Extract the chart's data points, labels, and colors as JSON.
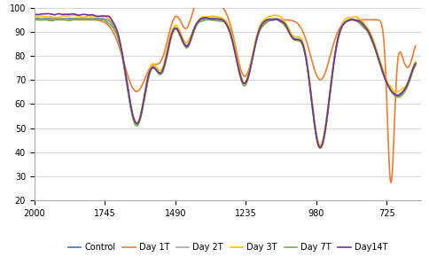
{
  "title": "",
  "xlabel": "",
  "ylabel": "",
  "xlim": [
    2000,
    600
  ],
  "ylim": [
    20,
    100
  ],
  "yticks": [
    20,
    30,
    40,
    50,
    60,
    70,
    80,
    90,
    100
  ],
  "xticks": [
    2000,
    1745,
    1490,
    1235,
    980,
    725
  ],
  "legend_labels": [
    "Control",
    "Day 1T",
    "Day 2T",
    "Day 3T",
    "Day 7T",
    "Day14T"
  ],
  "colors": {
    "Control": "#4472C4",
    "Day 1T": "#ED7D31",
    "Day 2T": "#A5A5A5",
    "Day 3T": "#FFC000",
    "Day 7T": "#70AD47",
    "Day14T": "#7030A0"
  },
  "background_color": "#FFFFFF",
  "grid_color": "#D9D9D9"
}
